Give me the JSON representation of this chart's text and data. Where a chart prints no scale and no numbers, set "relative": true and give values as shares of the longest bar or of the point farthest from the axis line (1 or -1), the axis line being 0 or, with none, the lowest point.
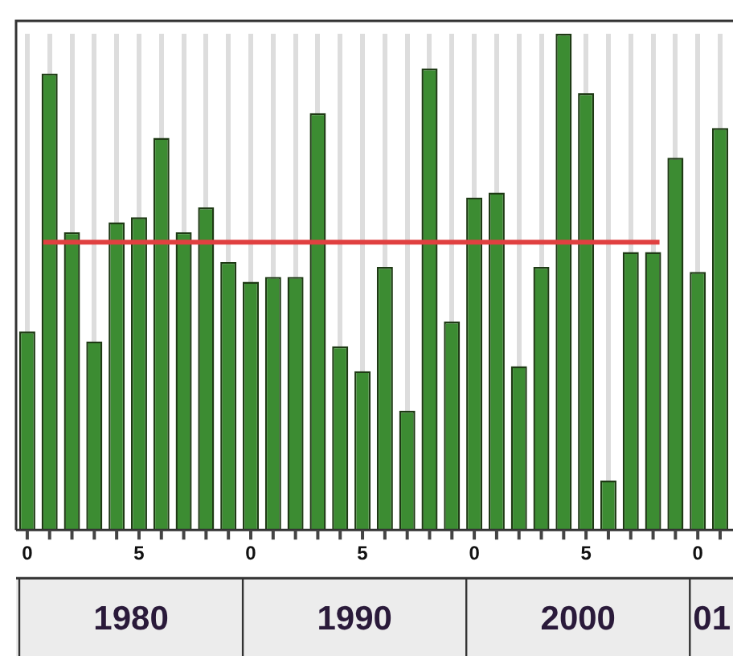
{
  "chart_data": {
    "type": "bar",
    "relative": true,
    "categories": [
      "0",
      null,
      null,
      null,
      null,
      "5",
      null,
      null,
      null,
      null,
      "0",
      null,
      null,
      null,
      null,
      "5",
      null,
      null,
      null,
      null,
      "0",
      null,
      null,
      null,
      null,
      "5",
      null,
      null,
      null,
      null,
      "0",
      null
    ],
    "values": [
      0.4,
      0.92,
      0.6,
      0.38,
      0.62,
      0.63,
      0.79,
      0.6,
      0.65,
      0.54,
      0.5,
      0.51,
      0.51,
      0.84,
      0.37,
      0.32,
      0.53,
      0.24,
      0.93,
      0.42,
      0.67,
      0.68,
      0.33,
      0.53,
      1,
      0.88,
      0.1,
      0.56,
      0.56,
      0.75,
      0.52,
      0.81
    ],
    "color": "#3c8c32",
    "ref_lines": [
      {
        "axis": "y",
        "value": 0.58,
        "color": "#e04040"
      }
    ],
    "annotations": [
      "1980",
      "1990",
      "2000",
      "01"
    ],
    "grid": "x"
  }
}
